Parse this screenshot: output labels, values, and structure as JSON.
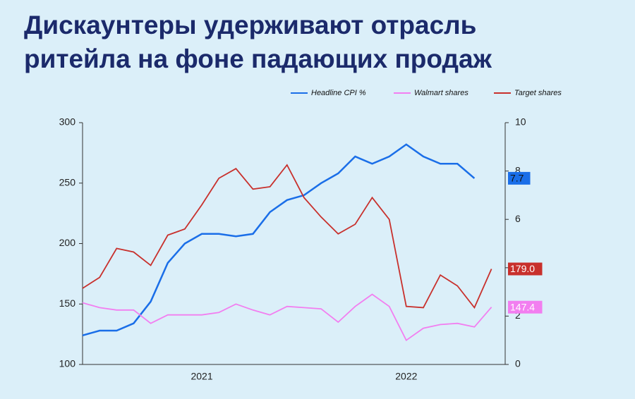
{
  "chart_data": {
    "type": "line",
    "title": [
      "Дискаунтеры удерживают отрасль",
      "ритейла на фоне падающих продаж"
    ],
    "categories": [
      null,
      null,
      null,
      null,
      null,
      null,
      null,
      "2021",
      null,
      null,
      null,
      null,
      null,
      null,
      null,
      null,
      null,
      null,
      null,
      "2022",
      null,
      null,
      null,
      null,
      null
    ],
    "ylim": [
      100,
      300
    ],
    "yticks": [
      100,
      150,
      200,
      250,
      300
    ],
    "y2lim": [
      0,
      10
    ],
    "y2ticks": [
      0,
      2,
      4,
      6,
      8,
      10
    ],
    "grid": false,
    "legend": "top-right",
    "series": [
      {
        "name": "Headline CPI %",
        "color": "#1a6ee8",
        "axis": "y2",
        "values": [
          1.2,
          1.4,
          1.4,
          1.7,
          2.6,
          4.2,
          5.0,
          5.4,
          5.4,
          5.3,
          5.4,
          6.3,
          6.8,
          7.0,
          7.5,
          7.9,
          8.6,
          8.3,
          8.6,
          9.1,
          8.6,
          8.3,
          8.3,
          7.7,
          null
        ],
        "value_labels": [
          null,
          null,
          null,
          null,
          null,
          null,
          null,
          null,
          null,
          null,
          null,
          null,
          null,
          null,
          null,
          null,
          null,
          null,
          null,
          null,
          null,
          null,
          null,
          "7.7",
          null
        ]
      },
      {
        "name": "Walmart shares",
        "color": "#f27ef0",
        "values": [
          151,
          147,
          145,
          145,
          134,
          141,
          141,
          141,
          143,
          150,
          145,
          141,
          148,
          147,
          146,
          135,
          148,
          158,
          148,
          120,
          130,
          133,
          134,
          131,
          147.4
        ],
        "value_labels": [
          null,
          null,
          null,
          null,
          null,
          null,
          null,
          null,
          null,
          null,
          null,
          null,
          null,
          null,
          null,
          null,
          null,
          null,
          null,
          null,
          null,
          null,
          null,
          null,
          "147.4"
        ]
      },
      {
        "name": "Target shares",
        "color": "#c8302c",
        "values": [
          163,
          172,
          196,
          193,
          182,
          207,
          212,
          232,
          254,
          262,
          245,
          247,
          265,
          238,
          222,
          208,
          216,
          238,
          220,
          148,
          147,
          174,
          165,
          147,
          179.0
        ],
        "value_labels": [
          null,
          null,
          null,
          null,
          null,
          null,
          null,
          null,
          null,
          null,
          null,
          null,
          null,
          null,
          null,
          null,
          null,
          null,
          null,
          null,
          null,
          null,
          null,
          null,
          "179.0"
        ]
      }
    ]
  }
}
